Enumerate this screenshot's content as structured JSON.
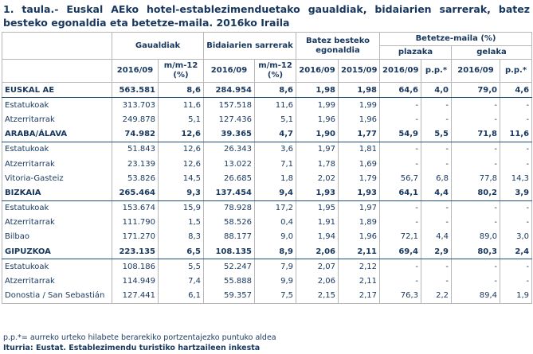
{
  "title": "1. taula.- Euskal AEko hotel-establezimenduetako gaualdiak, bidaiarien sarrerak, batez besteko egonaldia eta betetze-maila. 2016ko Iraila",
  "table": {
    "group_headers": [
      "Gaualdiak",
      "Bidaiarien sarrerak",
      "Batez besteko egonaldia",
      "Betetze-maila (%)"
    ],
    "sub_headers": [
      "plazaka",
      "gelaka"
    ],
    "column_headers": [
      "2016/09",
      "m/m-12 (%)",
      "2016/09",
      "m/m-12 (%)",
      "2016/09",
      "2015/09",
      "2016/09",
      "p.p.*",
      "2016/09",
      "p.p.*"
    ],
    "regions": [
      {
        "name": "EUSKAL AE",
        "cells": [
          "563.581",
          "8,6",
          "284.954",
          "8,6",
          "1,98",
          "1,98",
          "64,6",
          "4,0",
          "79,0",
          "4,6"
        ],
        "rows": [
          {
            "label": "Estatukoak",
            "cells": [
              "313.703",
              "11,6",
              "157.518",
              "11,6",
              "1,99",
              "1,99",
              "-",
              "-",
              "-",
              "-"
            ]
          },
          {
            "label": "Atzerritarrak",
            "cells": [
              "249.878",
              "5,1",
              "127.436",
              "5,1",
              "1,96",
              "1,96",
              "-",
              "-",
              "-",
              "-"
            ]
          }
        ]
      },
      {
        "name": "ARABA/ÁLAVA",
        "cells": [
          "74.982",
          "12,6",
          "39.365",
          "4,7",
          "1,90",
          "1,77",
          "54,9",
          "5,5",
          "71,8",
          "11,6"
        ],
        "rows": [
          {
            "label": "Estatukoak",
            "cells": [
              "51.843",
              "12,6",
              "26.343",
              "3,6",
              "1,97",
              "1,81",
              "-",
              "-",
              "-",
              "-"
            ]
          },
          {
            "label": "Atzerritarrak",
            "cells": [
              "23.139",
              "12,6",
              "13.022",
              "7,1",
              "1,78",
              "1,69",
              "-",
              "-",
              "-",
              "-"
            ]
          },
          {
            "label": "Vitoria-Gasteiz",
            "cells": [
              "53.826",
              "14,5",
              "26.685",
              "1,8",
              "2,02",
              "1,79",
              "56,7",
              "6,8",
              "77,8",
              "14,3"
            ]
          }
        ]
      },
      {
        "name": "BIZKAIA",
        "cells": [
          "265.464",
          "9,3",
          "137.454",
          "9,4",
          "1,93",
          "1,93",
          "64,1",
          "4,4",
          "80,2",
          "3,9"
        ],
        "rows": [
          {
            "label": "Estatukoak",
            "cells": [
              "153.674",
              "15,9",
              "78.928",
              "17,2",
              "1,95",
              "1,97",
              "-",
              "-",
              "-",
              "-"
            ]
          },
          {
            "label": "Atzerritarrak",
            "cells": [
              "111.790",
              "1,5",
              "58.526",
              "0,4",
              "1,91",
              "1,89",
              "-",
              "-",
              "-",
              "-"
            ]
          },
          {
            "label": "Bilbao",
            "cells": [
              "171.270",
              "8,3",
              "88.177",
              "9,0",
              "1,94",
              "1,96",
              "72,1",
              "4,4",
              "89,0",
              "3,0"
            ]
          }
        ]
      },
      {
        "name": "GIPUZKOA",
        "cells": [
          "223.135",
          "6,5",
          "108.135",
          "8,9",
          "2,06",
          "2,11",
          "69,4",
          "2,9",
          "80,3",
          "2,4"
        ],
        "rows": [
          {
            "label": "Estatukoak",
            "cells": [
              "108.186",
              "5,5",
              "52.247",
              "7,9",
              "2,07",
              "2,12",
              "-",
              "-",
              "-",
              "-"
            ]
          },
          {
            "label": "Atzerritarrak",
            "cells": [
              "114.949",
              "7,4",
              "55.888",
              "9,9",
              "2,06",
              "2,11",
              "-",
              "-",
              "-",
              "-"
            ]
          },
          {
            "label": "Donostia / San Sebastián",
            "cells": [
              "127.441",
              "6,1",
              "59.357",
              "7,5",
              "2,15",
              "2,17",
              "76,3",
              "2,2",
              "89,4",
              "1,9"
            ]
          }
        ]
      }
    ]
  },
  "notes": [
    "p.p.*= aurreko urteko hilabete berarekiko portzentajezko puntuko aldea",
    "Iturria: Eustat. Establezimendu turistiko hartzaileen inkesta"
  ]
}
